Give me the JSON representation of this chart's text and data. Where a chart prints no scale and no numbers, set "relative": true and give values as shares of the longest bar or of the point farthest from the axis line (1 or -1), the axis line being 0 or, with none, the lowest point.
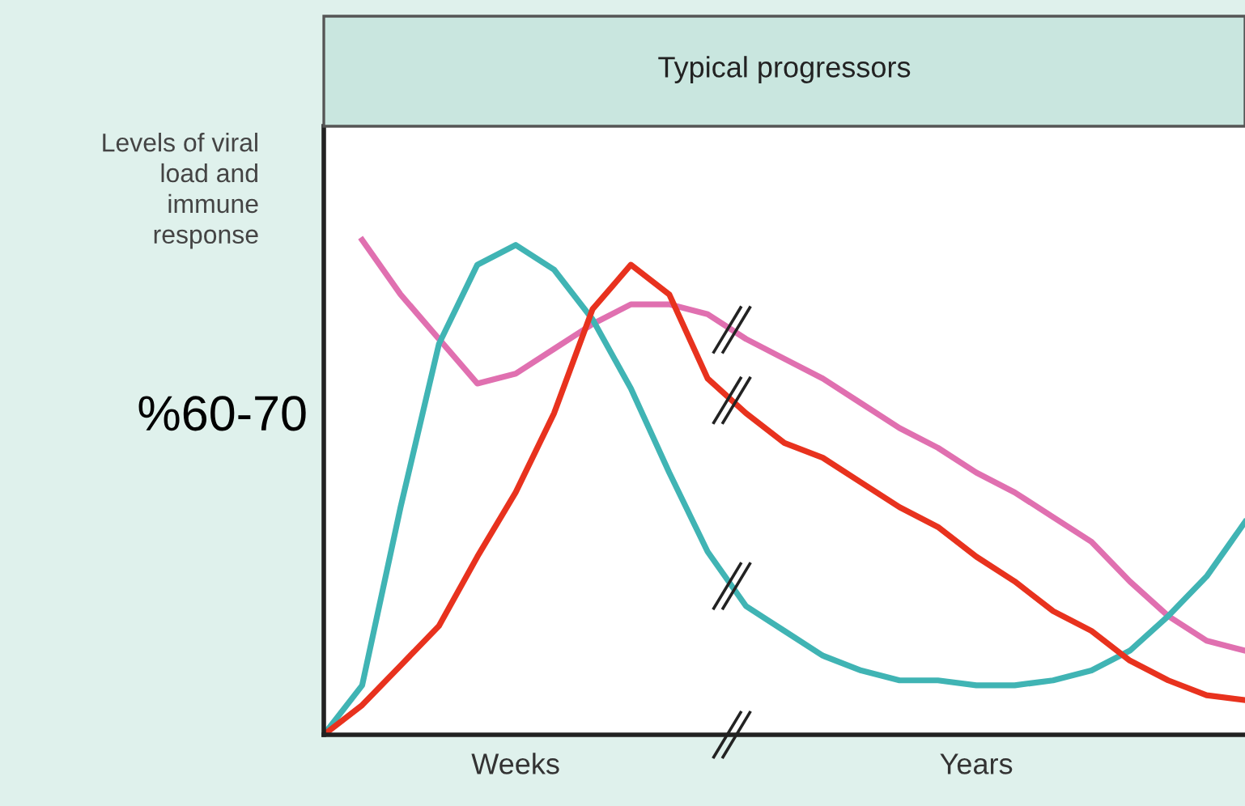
{
  "chart_data": {
    "type": "line",
    "title": "Typical progressors",
    "ylabel": "Levels of viral\nload and\nimmune\nresponse",
    "relative": true,
    "categories": [
      null,
      null,
      null,
      null,
      null,
      "Weeks",
      null,
      null,
      null,
      null,
      null,
      null,
      null,
      null,
      null,
      null,
      null,
      "Years",
      null,
      null,
      null,
      null,
      null,
      null,
      null
    ],
    "series": [
      {
        "color": "#e070b0",
        "values": [
          null,
          1.0,
          0.89,
          0.8,
          0.71,
          0.73,
          0.78,
          0.83,
          0.87,
          0.87,
          0.85,
          0.8,
          0.76,
          0.72,
          0.67,
          0.62,
          0.58,
          0.53,
          0.49,
          0.44,
          0.39,
          0.31,
          0.24,
          0.19,
          0.17
        ]
      },
      {
        "color": "#40b4b4",
        "values": [
          0,
          0.1,
          0.46,
          0.79,
          0.95,
          0.99,
          0.94,
          0.84,
          0.7,
          0.53,
          0.37,
          0.26,
          0.21,
          0.16,
          0.13,
          0.11,
          0.11,
          0.1,
          0.1,
          0.11,
          0.13,
          0.17,
          0.24,
          0.32,
          0.43
        ]
      },
      {
        "color": "#e8321e",
        "values": [
          0,
          0.06,
          0.14,
          0.22,
          0.36,
          0.49,
          0.65,
          0.86,
          0.95,
          0.89,
          0.72,
          0.65,
          0.59,
          0.56,
          0.51,
          0.46,
          0.42,
          0.36,
          0.31,
          0.25,
          0.21,
          0.15,
          0.11,
          0.08,
          0.07
        ]
      }
    ],
    "annotations": [
      "%60-70"
    ],
    "grid": false,
    "legend": false
  }
}
